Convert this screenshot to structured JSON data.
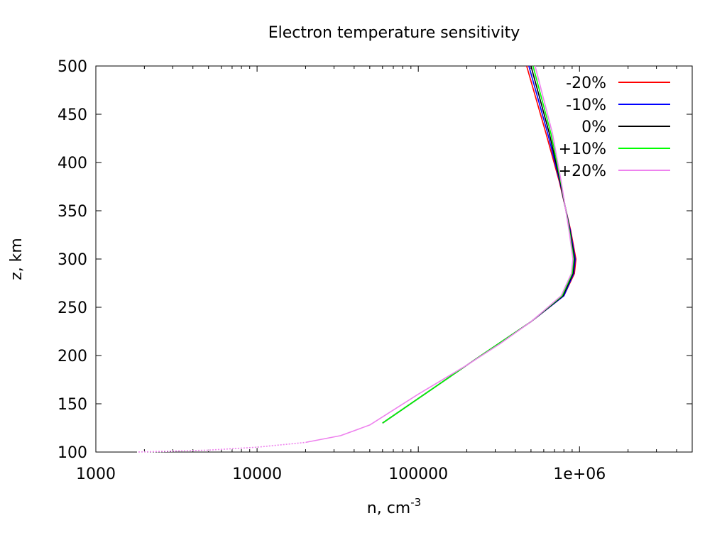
{
  "chart_data": {
    "type": "line",
    "title": "Electron temperature sensitivity",
    "xlabel": "n, cm",
    "xlabel_superscript": "-3",
    "ylabel": "z, km",
    "xscale": "log",
    "xlim": [
      1000,
      5000000
    ],
    "ylim": [
      100,
      500
    ],
    "xticks": [
      1000,
      10000,
      100000,
      1000000
    ],
    "xtick_labels": [
      "1000",
      "10000",
      "100000",
      "1e+06"
    ],
    "yticks": [
      100,
      150,
      200,
      250,
      300,
      350,
      400,
      450,
      500
    ],
    "ytick_labels": [
      "100",
      "150",
      "200",
      "250",
      "300",
      "350",
      "400",
      "450",
      "500"
    ],
    "grid": false,
    "legend_position": "top-right",
    "series": [
      {
        "name": "-20%",
        "color": "#ff0000",
        "points": [
          [
            60000,
            130
          ],
          [
            200000,
            190
          ],
          [
            500000,
            235
          ],
          [
            800000,
            262
          ],
          [
            930000,
            285
          ],
          [
            950000,
            300
          ],
          [
            880000,
            330
          ],
          [
            750000,
            380
          ],
          [
            620000,
            430
          ],
          [
            470000,
            500
          ]
        ]
      },
      {
        "name": "-10%",
        "color": "#0000ff",
        "points": [
          [
            60000,
            130
          ],
          [
            200000,
            190
          ],
          [
            500000,
            235
          ],
          [
            800000,
            262
          ],
          [
            920000,
            285
          ],
          [
            940000,
            300
          ],
          [
            875000,
            330
          ],
          [
            755000,
            380
          ],
          [
            635000,
            430
          ],
          [
            485000,
            500
          ]
        ]
      },
      {
        "name": "0%",
        "color": "#000000",
        "points": [
          [
            60000,
            130
          ],
          [
            200000,
            190
          ],
          [
            500000,
            235
          ],
          [
            790000,
            262
          ],
          [
            910000,
            285
          ],
          [
            930000,
            300
          ],
          [
            870000,
            330
          ],
          [
            760000,
            380
          ],
          [
            650000,
            430
          ],
          [
            500000,
            500
          ]
        ]
      },
      {
        "name": "+10%",
        "color": "#00ff00",
        "points": [
          [
            60000,
            130
          ],
          [
            200000,
            190
          ],
          [
            500000,
            235
          ],
          [
            780000,
            262
          ],
          [
            900000,
            285
          ],
          [
            920000,
            300
          ],
          [
            865000,
            330
          ],
          [
            765000,
            380
          ],
          [
            665000,
            430
          ],
          [
            515000,
            500
          ]
        ]
      },
      {
        "name": "+20%",
        "color": "#ee82ee",
        "points": [
          [
            1800,
            100
          ],
          [
            5000,
            102
          ],
          [
            10000,
            105
          ],
          [
            20000,
            110
          ],
          [
            33000,
            117
          ],
          [
            50000,
            128
          ],
          [
            100000,
            160
          ],
          [
            200000,
            190
          ],
          [
            320000,
            212
          ],
          [
            500000,
            235
          ],
          [
            770000,
            262
          ],
          [
            890000,
            285
          ],
          [
            910000,
            300
          ],
          [
            860000,
            330
          ],
          [
            770000,
            380
          ],
          [
            680000,
            430
          ],
          [
            530000,
            500
          ]
        ]
      }
    ]
  }
}
